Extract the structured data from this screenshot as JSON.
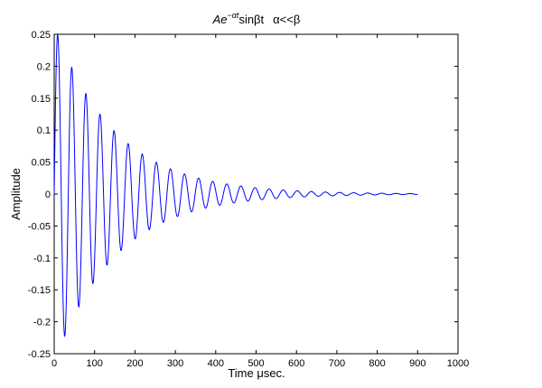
{
  "chart_data": {
    "type": "line",
    "title": {
      "prefix": "Ae",
      "superscript": "−αt",
      "func": "sinβt",
      "condition": "α<<β"
    },
    "xlabel": "Time μsec.",
    "ylabel": "Amplitude",
    "xlim": [
      0,
      1000
    ],
    "ylim": [
      -0.25,
      0.25
    ],
    "xticks": [
      0,
      100,
      200,
      300,
      400,
      500,
      600,
      700,
      800,
      900,
      1000
    ],
    "yticks": [
      -0.25,
      -0.2,
      -0.15,
      -0.1,
      -0.05,
      0,
      0.05,
      0.1,
      0.15,
      0.2,
      0.25
    ],
    "x_tick_labels": [
      "0",
      "100",
      "200",
      "300",
      "400",
      "500",
      "600",
      "700",
      "800",
      "900",
      "1000"
    ],
    "y_tick_labels": [
      "-0.25",
      "-0.2",
      "-0.15",
      "-0.1",
      "-0.05",
      "0",
      "0.05",
      "0.1",
      "0.15",
      "0.2",
      "0.25"
    ],
    "grid": false,
    "series": [
      {
        "color": "#0000ff",
        "x_range": [
          0,
          900
        ],
        "function": "A*exp(-alpha*t)*sin(beta*t)",
        "params": {
          "A": 0.264,
          "alpha": 0.0066,
          "beta": 0.18
        }
      }
    ]
  }
}
